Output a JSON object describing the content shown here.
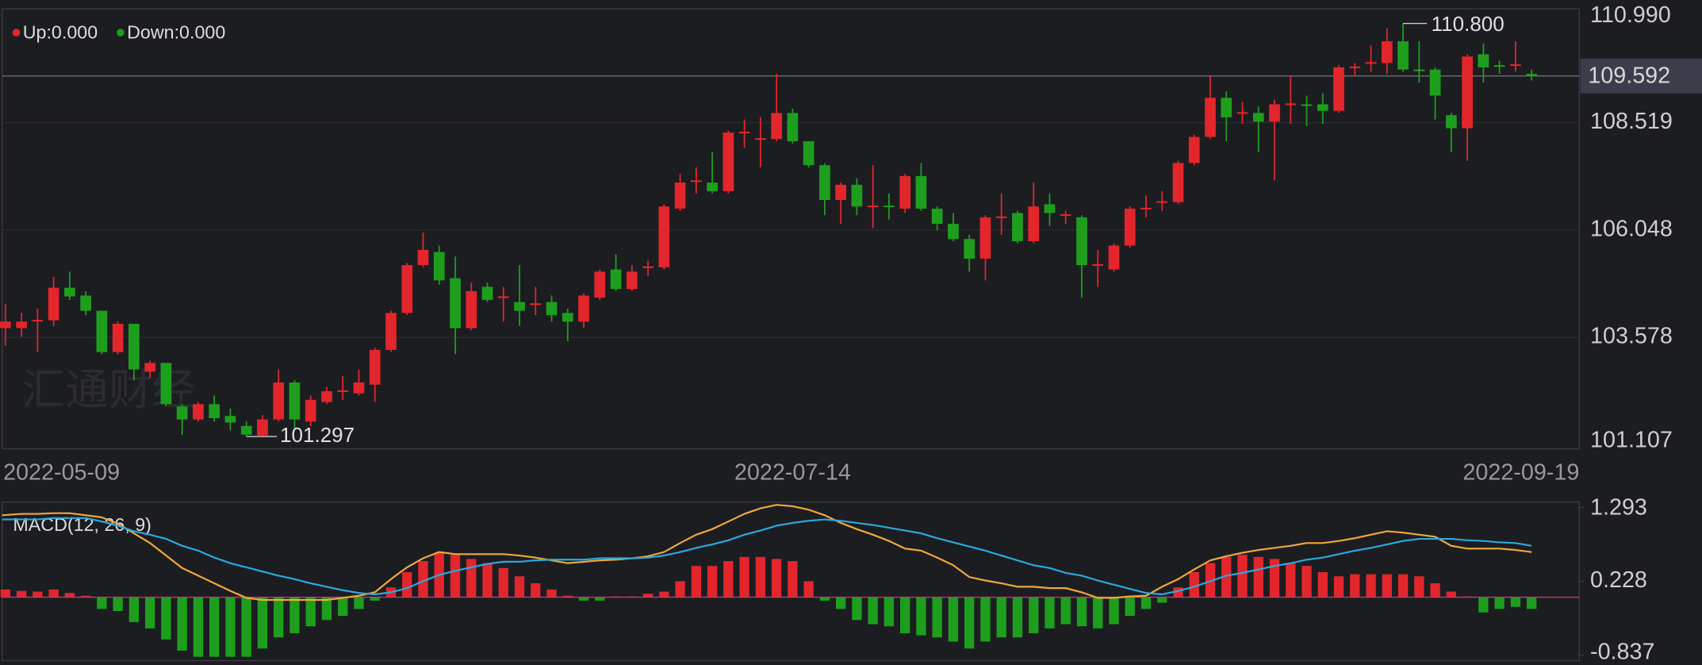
{
  "chart_data": [
    {
      "type": "candlestick",
      "indicator_labels": [
        "Up:0.000",
        "Down:0.000"
      ],
      "watermark": "汇通财经",
      "up_color": "#e3262b",
      "down_color": "#1d9f1d",
      "grid": true,
      "categories": [
        "2022-05-09",
        null,
        null,
        null,
        null,
        null,
        null,
        null,
        null,
        null,
        null,
        null,
        null,
        null,
        null,
        null,
        null,
        null,
        null,
        null,
        null,
        null,
        null,
        null,
        null,
        null,
        null,
        null,
        null,
        null,
        null,
        null,
        null,
        null,
        null,
        null,
        null,
        null,
        null,
        null,
        null,
        null,
        null,
        null,
        null,
        null,
        null,
        null,
        null,
        "2022-07-14",
        null,
        null,
        null,
        null,
        null,
        null,
        null,
        null,
        null,
        null,
        null,
        null,
        null,
        null,
        null,
        null,
        null,
        null,
        null,
        null,
        null,
        null,
        null,
        null,
        null,
        null,
        null,
        null,
        null,
        null,
        null,
        null,
        null,
        null,
        null,
        null,
        null,
        null,
        null,
        null,
        null,
        null,
        null,
        null,
        null,
        "2022-09-19"
      ],
      "open": [
        103.79,
        103.79,
        103.96,
        103.97,
        104.72,
        104.54,
        104.19,
        103.24,
        103.89,
        102.79,
        102.99,
        101.99,
        101.69,
        102.04,
        101.77,
        101.54,
        101.32,
        101.69,
        102.54,
        101.64,
        102.09,
        102.34,
        102.29,
        102.49,
        103.29,
        104.14,
        105.24,
        105.54,
        104.94,
        103.79,
        104.74,
        104.49,
        104.39,
        104.34,
        104.39,
        104.14,
        103.94,
        104.49,
        105.14,
        104.69,
        105.19,
        105.19,
        106.54,
        107.17,
        107.14,
        106.94,
        108.29,
        108.14,
        108.14,
        108.74,
        108.09,
        107.54,
        106.74,
        107.09,
        106.59,
        106.61,
        106.54,
        107.29,
        106.54,
        106.19,
        105.84,
        105.39,
        106.34,
        106.44,
        105.79,
        106.64,
        106.39,
        106.34,
        105.24,
        105.14,
        105.69,
        106.54,
        106.69,
        106.69,
        107.59,
        108.19,
        109.09,
        108.74,
        108.74,
        108.54,
        108.94,
        108.94,
        108.94,
        108.79,
        109.79,
        109.89,
        109.89,
        110.39,
        109.74,
        109.74,
        108.69,
        108.39,
        110.09,
        109.84,
        109.84,
        109.64
      ],
      "high": [
        104.34,
        104.14,
        104.24,
        104.97,
        105.09,
        104.64,
        104.19,
        103.94,
        103.89,
        103.04,
        102.99,
        102.04,
        102.09,
        102.24,
        101.94,
        101.64,
        101.79,
        102.84,
        102.59,
        102.24,
        102.44,
        102.69,
        102.84,
        103.34,
        104.19,
        105.29,
        105.99,
        105.69,
        105.44,
        104.84,
        104.84,
        104.74,
        105.24,
        104.74,
        104.54,
        104.24,
        104.59,
        105.14,
        105.49,
        105.24,
        105.34,
        106.64,
        107.34,
        107.49,
        107.84,
        108.34,
        108.59,
        108.64,
        109.64,
        108.84,
        108.09,
        107.59,
        107.14,
        107.24,
        107.54,
        106.89,
        107.34,
        107.59,
        106.59,
        106.44,
        105.94,
        106.39,
        106.89,
        106.49,
        107.14,
        106.89,
        106.49,
        106.39,
        105.59,
        105.74,
        106.59,
        106.84,
        106.94,
        107.64,
        108.24,
        109.59,
        109.24,
        108.99,
        108.89,
        109.04,
        109.59,
        109.14,
        109.19,
        109.84,
        109.89,
        110.29,
        110.69,
        110.8,
        110.39,
        109.79,
        108.74,
        110.09,
        110.34,
        109.94,
        110.39,
        109.74
      ],
      "low": [
        103.39,
        103.59,
        103.24,
        103.84,
        104.44,
        104.09,
        103.19,
        103.19,
        102.59,
        102.64,
        101.99,
        101.34,
        101.64,
        101.64,
        101.44,
        101.297,
        101.3,
        101.64,
        101.44,
        101.54,
        102.04,
        102.14,
        102.24,
        102.09,
        103.24,
        104.09,
        105.19,
        104.79,
        103.19,
        103.74,
        104.39,
        103.94,
        103.84,
        104.09,
        103.94,
        103.49,
        103.79,
        104.44,
        104.64,
        104.64,
        104.99,
        105.14,
        106.49,
        106.89,
        106.89,
        106.89,
        107.94,
        107.49,
        108.09,
        108.04,
        107.49,
        106.39,
        106.19,
        106.39,
        106.09,
        106.29,
        106.44,
        106.49,
        106.04,
        105.79,
        105.09,
        104.89,
        105.94,
        105.74,
        105.74,
        106.14,
        106.19,
        104.49,
        104.74,
        105.09,
        105.64,
        106.34,
        106.49,
        106.64,
        107.54,
        108.14,
        108.09,
        108.49,
        107.84,
        107.19,
        108.49,
        108.44,
        108.49,
        108.74,
        109.59,
        109.69,
        109.64,
        109.69,
        109.44,
        108.59,
        107.84,
        107.64,
        109.44,
        109.64,
        109.69,
        109.49
      ],
      "close": [
        103.94,
        103.94,
        103.98,
        104.72,
        104.52,
        104.19,
        103.24,
        103.89,
        102.84,
        102.99,
        102.04,
        101.69,
        102.04,
        101.72,
        101.62,
        101.34,
        101.69,
        102.54,
        101.69,
        102.14,
        102.34,
        102.36,
        102.54,
        103.29,
        104.14,
        105.24,
        105.59,
        104.89,
        103.79,
        104.64,
        104.44,
        104.52,
        104.19,
        104.36,
        104.09,
        103.94,
        104.54,
        105.09,
        104.69,
        105.09,
        105.21,
        106.59,
        107.14,
        107.19,
        106.94,
        108.29,
        108.31,
        108.16,
        108.74,
        108.09,
        107.54,
        106.74,
        107.09,
        106.59,
        106.61,
        106.59,
        107.29,
        106.54,
        106.19,
        105.84,
        105.39,
        106.34,
        106.36,
        105.79,
        106.59,
        106.44,
        106.41,
        105.24,
        105.26,
        105.69,
        106.54,
        106.56,
        106.71,
        107.59,
        108.19,
        109.09,
        108.64,
        108.76,
        108.54,
        108.94,
        108.96,
        108.92,
        108.79,
        109.79,
        109.81,
        109.91,
        110.39,
        109.74,
        109.72,
        109.14,
        108.39,
        110.04,
        109.79,
        109.82,
        109.86,
        109.59
      ],
      "ylim": [
        101.015,
        111.14
      ],
      "yticks": [
        {
          "value": 110.99,
          "label": "110.990"
        },
        108.519,
        106.048,
        103.578,
        101.107
      ],
      "last_price": {
        "value": 109.592,
        "label": "109.592"
      },
      "high_label": {
        "value": 110.8,
        "label": "110.800"
      },
      "low_label": {
        "value": 101.297,
        "label": "101.297"
      }
    },
    {
      "type": "macd",
      "title": "MACD(12, 26, 9)",
      "zero_color": "#b0407a",
      "histogram": {
        "up_color": "#e3262b",
        "down_color": "#1d9f1d",
        "values": [
          0.11,
          0.09,
          0.08,
          0.11,
          0.06,
          0.02,
          -0.17,
          -0.2,
          -0.36,
          -0.45,
          -0.61,
          -0.77,
          -0.86,
          -0.86,
          -0.86,
          -0.86,
          -0.74,
          -0.58,
          -0.52,
          -0.42,
          -0.33,
          -0.27,
          -0.17,
          -0.05,
          0.14,
          0.36,
          0.52,
          0.64,
          0.61,
          0.55,
          0.49,
          0.42,
          0.3,
          0.2,
          0.11,
          0.02,
          -0.05,
          -0.05,
          0.01,
          0.01,
          0.05,
          0.08,
          0.23,
          0.45,
          0.45,
          0.52,
          0.58,
          0.58,
          0.55,
          0.52,
          0.23,
          -0.05,
          -0.17,
          -0.33,
          -0.39,
          -0.42,
          -0.52,
          -0.55,
          -0.58,
          -0.64,
          -0.74,
          -0.64,
          -0.58,
          -0.58,
          -0.52,
          -0.45,
          -0.39,
          -0.42,
          -0.45,
          -0.39,
          -0.27,
          -0.17,
          -0.08,
          0.14,
          0.36,
          0.49,
          0.58,
          0.61,
          0.58,
          0.55,
          0.49,
          0.45,
          0.36,
          0.3,
          0.33,
          0.33,
          0.33,
          0.33,
          0.3,
          0.2,
          0.08,
          0.01,
          -0.22,
          -0.17,
          -0.14,
          -0.17
        ]
      },
      "lines": [
        {
          "color": "#f2a73b",
          "values": [
            1.18,
            1.2,
            1.2,
            1.21,
            1.21,
            1.18,
            1.15,
            1.06,
            0.92,
            0.78,
            0.6,
            0.42,
            0.31,
            0.2,
            0.09,
            -0.01,
            -0.04,
            -0.04,
            -0.04,
            -0.04,
            -0.04,
            -0.01,
            0.02,
            0.07,
            0.26,
            0.43,
            0.56,
            0.65,
            0.62,
            0.62,
            0.62,
            0.62,
            0.6,
            0.57,
            0.53,
            0.49,
            0.51,
            0.53,
            0.54,
            0.56,
            0.59,
            0.65,
            0.78,
            0.9,
            0.98,
            1.09,
            1.2,
            1.28,
            1.33,
            1.31,
            1.26,
            1.18,
            1.07,
            0.98,
            0.9,
            0.81,
            0.7,
            0.67,
            0.57,
            0.46,
            0.29,
            0.24,
            0.2,
            0.15,
            0.15,
            0.13,
            0.13,
            0.07,
            -0.01,
            -0.01,
            0.01,
            0.02,
            0.15,
            0.26,
            0.4,
            0.53,
            0.59,
            0.64,
            0.68,
            0.71,
            0.74,
            0.78,
            0.78,
            0.81,
            0.85,
            0.9,
            0.95,
            0.93,
            0.9,
            0.87,
            0.74,
            0.7,
            0.7,
            0.7,
            0.68,
            0.65
          ]
        },
        {
          "color": "#2aa9df",
          "values": [
            1.12,
            1.12,
            1.12,
            1.14,
            1.14,
            1.14,
            1.09,
            1.03,
            0.95,
            0.9,
            0.84,
            0.74,
            0.67,
            0.57,
            0.49,
            0.43,
            0.37,
            0.31,
            0.26,
            0.2,
            0.15,
            0.1,
            0.06,
            0.04,
            0.07,
            0.13,
            0.23,
            0.32,
            0.38,
            0.43,
            0.48,
            0.51,
            0.51,
            0.53,
            0.54,
            0.54,
            0.54,
            0.56,
            0.56,
            0.56,
            0.57,
            0.6,
            0.65,
            0.71,
            0.76,
            0.82,
            0.9,
            0.96,
            1.03,
            1.07,
            1.1,
            1.12,
            1.1,
            1.07,
            1.04,
            1.0,
            0.96,
            0.92,
            0.85,
            0.79,
            0.73,
            0.67,
            0.6,
            0.53,
            0.46,
            0.42,
            0.35,
            0.31,
            0.24,
            0.18,
            0.12,
            0.06,
            0.04,
            0.09,
            0.15,
            0.23,
            0.31,
            0.35,
            0.4,
            0.45,
            0.49,
            0.54,
            0.57,
            0.62,
            0.67,
            0.71,
            0.76,
            0.81,
            0.84,
            0.84,
            0.84,
            0.82,
            0.81,
            0.79,
            0.78,
            0.74
          ]
        }
      ],
      "ylim": [
        -0.915,
        1.371
      ],
      "yticks": [
        1.293,
        0.228,
        -0.837
      ]
    }
  ]
}
